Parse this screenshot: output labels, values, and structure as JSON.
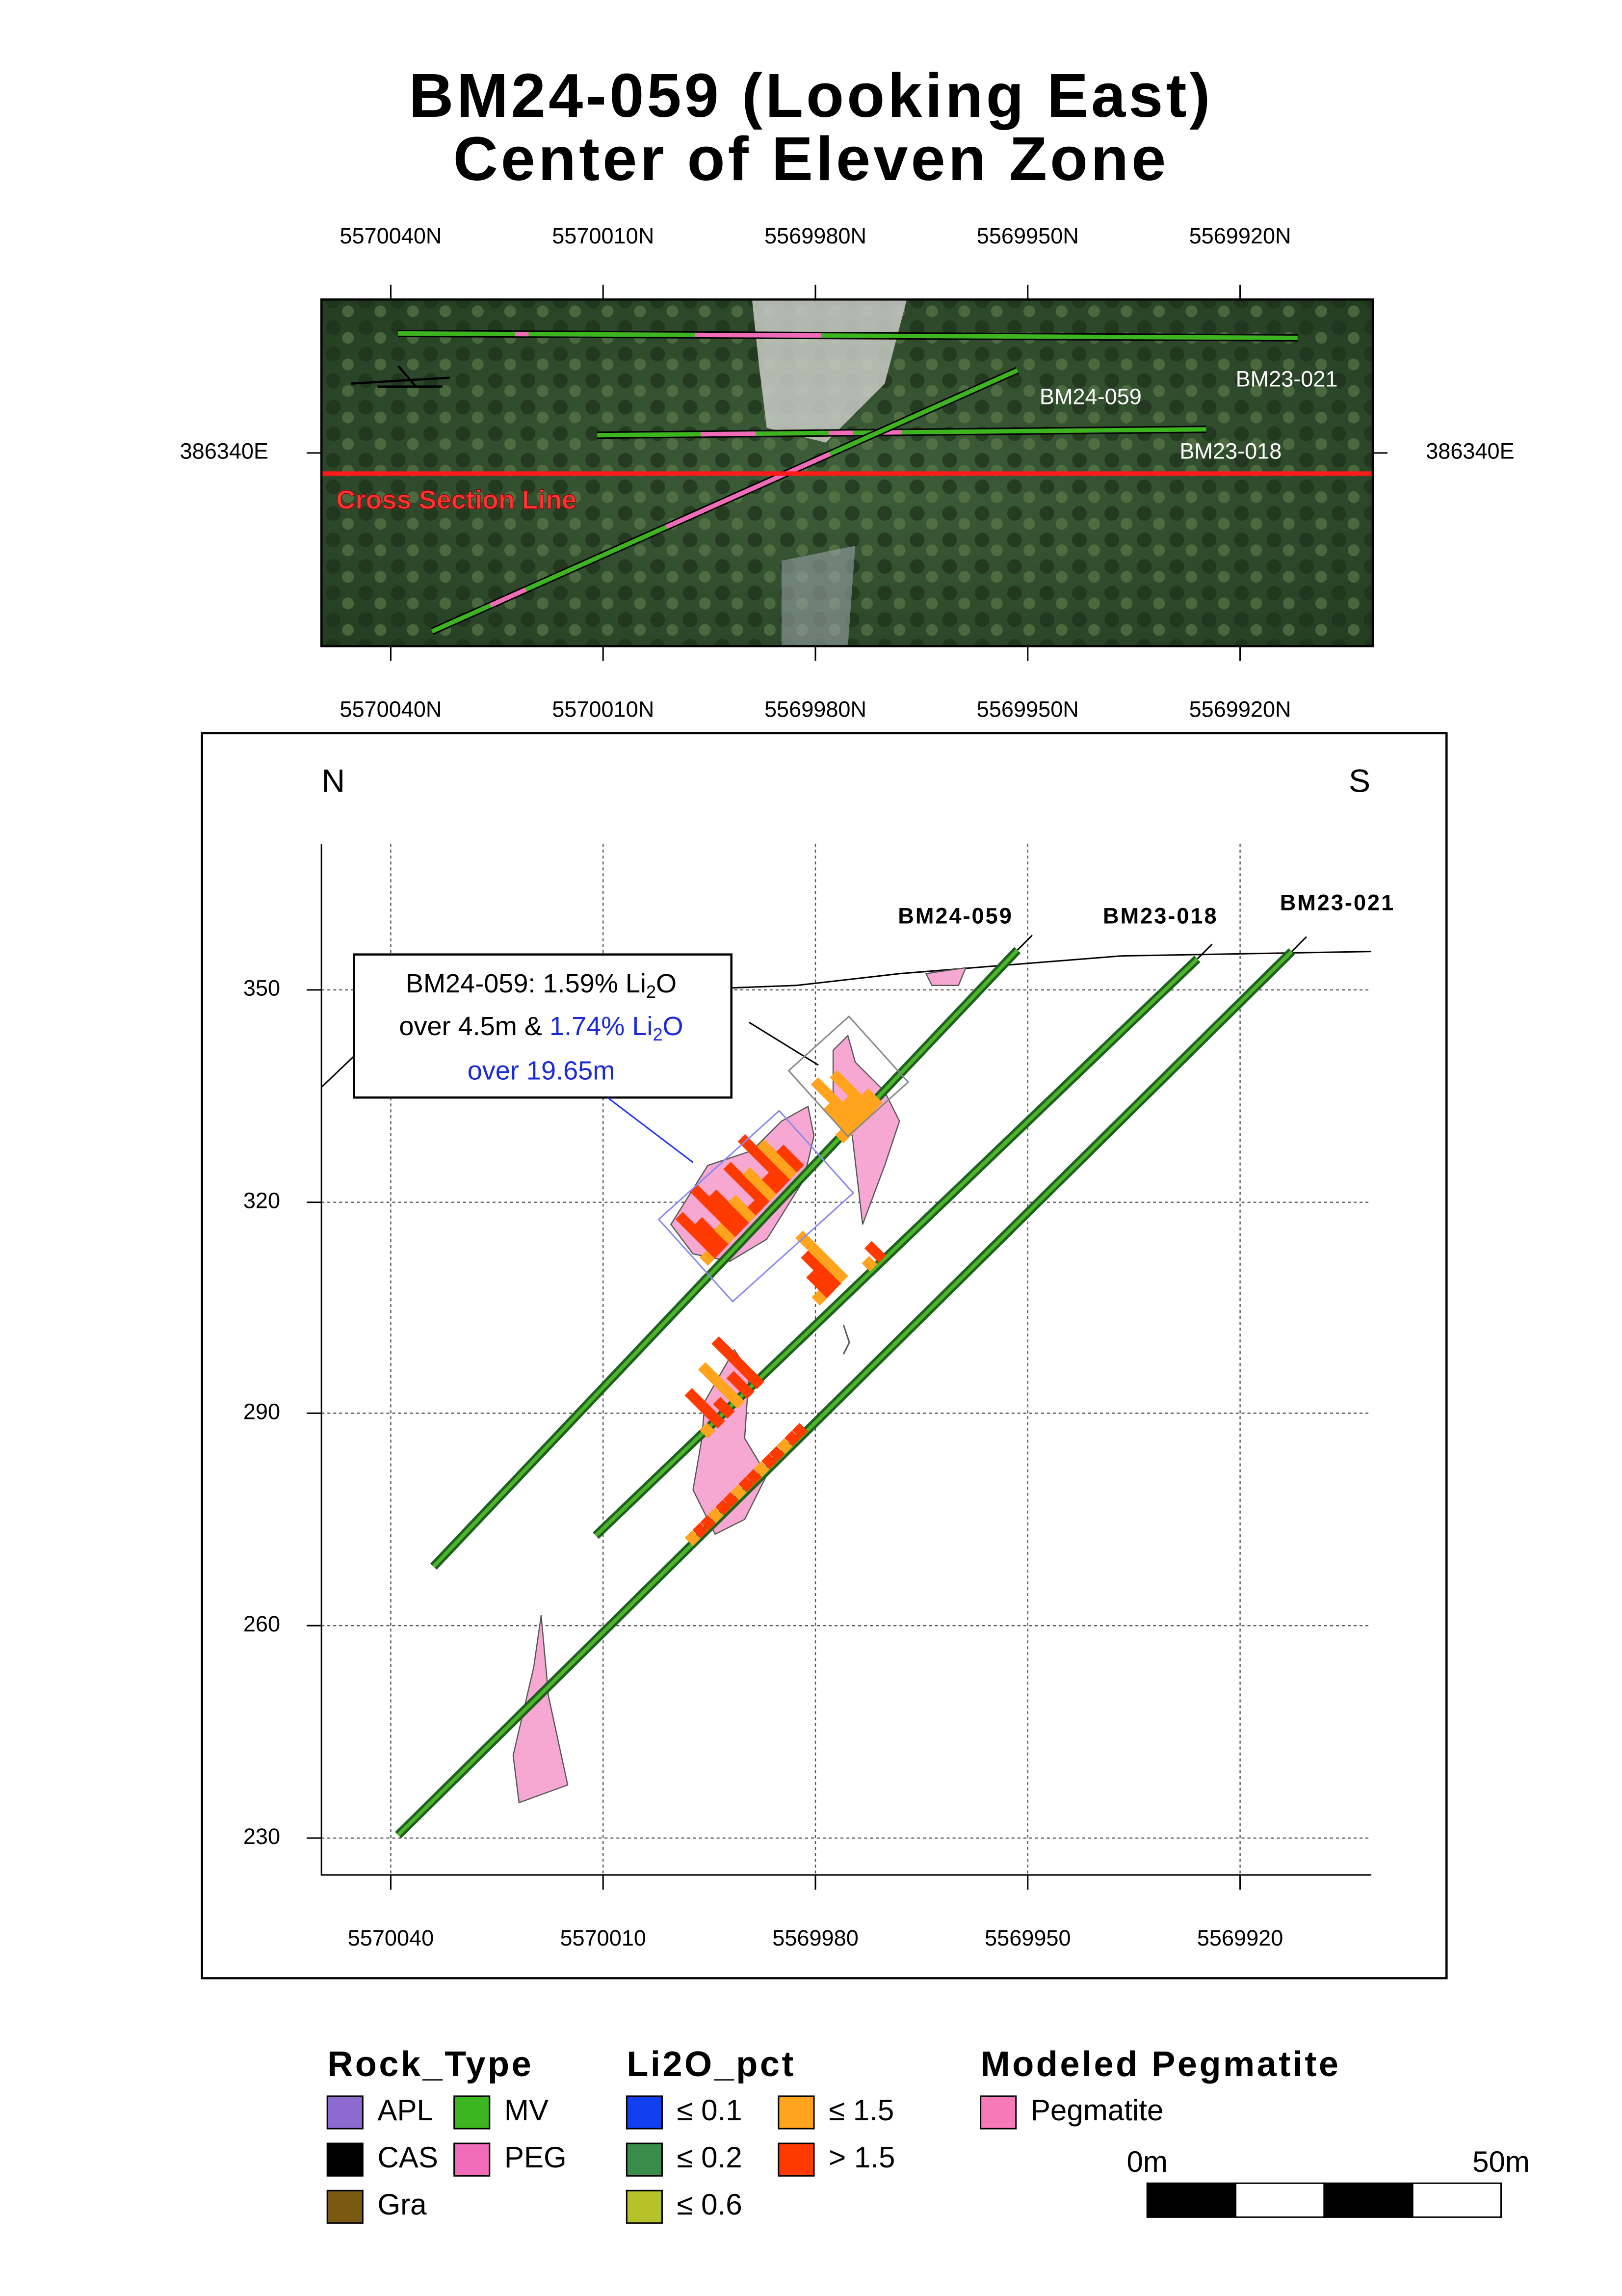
{
  "title": [
    "BM24-059 (Looking East)",
    "Center of Eleven Zone"
  ],
  "plan_map": {
    "northing_labels": [
      "5570040N",
      "5570010N",
      "5569980N",
      "5569950N",
      "5569920N"
    ],
    "easting_label": "386340E",
    "hole_labels": [
      "BM24-059",
      "BM23-021",
      "BM23-018"
    ],
    "section_line_label": "Cross Section Line"
  },
  "section": {
    "direction_left": "N",
    "direction_right": "S",
    "x_labels": [
      "5570040",
      "5570010",
      "5569980",
      "5569950",
      "5569920"
    ],
    "y_labels": [
      "350",
      "320",
      "290",
      "260",
      "230"
    ],
    "hole_labels": [
      "BM24-059",
      "BM23-018",
      "BM23-021"
    ],
    "callout": [
      "BM24-059: 1.59% Li",
      "2",
      "O",
      "over 4.5m & ",
      "1.74% Li",
      "2",
      "O",
      "over 19.65m"
    ]
  },
  "legend": {
    "rock_type": {
      "title": "Rock_Type",
      "items": [
        "APL",
        "MV",
        "CAS",
        "PEG",
        "Gra"
      ]
    },
    "li2o_pct": {
      "title": "Li2O_pct",
      "items": [
        "≤ 0.1",
        "≤ 0.2",
        "≤ 0.6",
        "≤ 1.5",
        "> 1.5"
      ]
    },
    "modeled": {
      "title": "Modeled Pegmatite",
      "items": [
        "Pegmatite"
      ]
    },
    "scale": [
      "0m",
      "50m"
    ]
  }
}
